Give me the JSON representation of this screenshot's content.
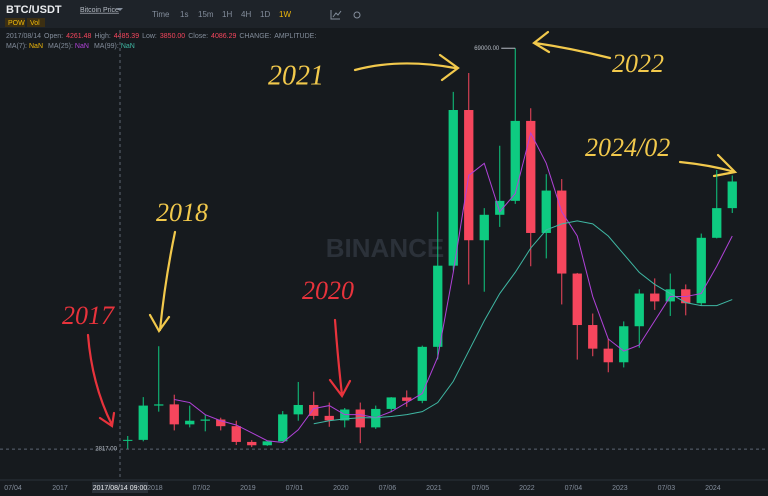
{
  "ui": {
    "symbol": "BTC/USDT",
    "symbol_name": "Bitcoin Price",
    "tags": [
      "POW",
      "Vol"
    ],
    "intervals": [
      "Time",
      "1s",
      "15m",
      "1H",
      "4H",
      "1D",
      "1W"
    ],
    "info": {
      "date": "2017/08/14",
      "open_label": "Open:",
      "open": "4261.48",
      "high_label": "High:",
      "high": "4485.39",
      "low_label": "Low:",
      "low": "3850.00",
      "close_label": "Close:",
      "close": "4086.29",
      "change_label": "CHANGE:",
      "amplitude_label": "AMPLITUDE:"
    },
    "ma_line": [
      "MA(7):",
      "NaN",
      "MA(25):",
      "NaN",
      "MA(99):",
      "NaN"
    ],
    "watermark": "BINANCE",
    "pre_x_labels": [
      "07/04",
      "2017"
    ],
    "crosshair_label": "2017/08/14 09:00",
    "annotations": [
      {
        "text": "2017",
        "color": "#e8333c"
      },
      {
        "text": "2018",
        "color": "#f2c94c"
      },
      {
        "text": "2020",
        "color": "#e8333c"
      },
      {
        "text": "2021",
        "color": "#f2c94c"
      },
      {
        "text": "2022",
        "color": "#f2c94c"
      },
      {
        "text": "2024/02",
        "color": "#f2c94c"
      }
    ]
  },
  "chart_data": {
    "type": "candlestick",
    "up_color": "#0ecb81",
    "down_color": "#f6465d",
    "categories": [
      null,
      null,
      null,
      "2018",
      null,
      null,
      "07/02",
      null,
      null,
      "2019",
      null,
      null,
      "07/01",
      null,
      null,
      "2020",
      null,
      null,
      "07/06",
      null,
      null,
      "2021",
      null,
      null,
      "07/05",
      null,
      null,
      "2022",
      null,
      null,
      "07/04",
      null,
      null,
      "2023",
      null,
      null,
      "07/03",
      null,
      null,
      "2024"
    ],
    "open": [
      4261,
      4340,
      10000,
      10200,
      6900,
      7500,
      7700,
      6600,
      4000,
      3450,
      4100,
      8550,
      10100,
      8300,
      7550,
      9350,
      6400,
      9450,
      11350,
      10780,
      19700,
      33100,
      58800,
      37300,
      41500,
      43800,
      57000,
      38500,
      45500,
      31800,
      23300,
      19400,
      17150,
      23100,
      28500,
      27200,
      29200,
      26900,
      37700,
      42600
    ],
    "high": [
      4980,
      11400,
      19800,
      11800,
      9990,
      8500,
      8000,
      7500,
      4300,
      4200,
      9100,
      13900,
      12300,
      10500,
      9600,
      10500,
      10000,
      11400,
      12500,
      19900,
      42000,
      61800,
      64900,
      42600,
      52900,
      69000,
      59100,
      48200,
      47400,
      31900,
      25200,
      21100,
      23900,
      29200,
      31000,
      31800,
      30000,
      38400,
      48900,
      48000
    ],
    "low": [
      2817,
      4100,
      9000,
      5900,
      6400,
      5750,
      5900,
      3500,
      3150,
      3350,
      4050,
      7500,
      7700,
      6500,
      6400,
      3800,
      6150,
      8900,
      9800,
      10400,
      17600,
      32300,
      30000,
      28800,
      39500,
      43300,
      33000,
      34300,
      26700,
      17600,
      18150,
      15500,
      16300,
      19550,
      25800,
      24800,
      24900,
      26500,
      37600,
      41800
    ],
    "close": [
      4340,
      10000,
      10200,
      6900,
      7500,
      7700,
      6600,
      4000,
      3450,
      4100,
      8550,
      10100,
      8300,
      7550,
      9350,
      6400,
      9450,
      11350,
      10780,
      19700,
      33100,
      58800,
      37300,
      41500,
      43800,
      57000,
      38500,
      45500,
      31800,
      23300,
      19400,
      17150,
      23100,
      28500,
      27200,
      29200,
      26900,
      37700,
      42600,
      47000
    ],
    "series": [
      {
        "name": "MA(25)",
        "color": "#b042d8",
        "values": [
          null,
          null,
          null,
          11000,
          10500,
          8500,
          7500,
          6800,
          5500,
          4200,
          3900,
          6000,
          9500,
          10000,
          8500,
          8500,
          8000,
          9000,
          10500,
          12000,
          18000,
          32000,
          48000,
          50000,
          42000,
          45000,
          55000,
          50000,
          42000,
          38000,
          28000,
          21000,
          19000,
          20000,
          24000,
          28000,
          28000,
          28500,
          33000,
          38000
        ]
      },
      {
        "name": "MA(99)",
        "color": "#3fb7a3",
        "values": [
          null,
          null,
          null,
          null,
          null,
          null,
          null,
          null,
          null,
          null,
          null,
          null,
          7000,
          7500,
          7800,
          8000,
          8000,
          8200,
          8500,
          9000,
          10500,
          14000,
          19000,
          24000,
          28500,
          32000,
          36000,
          39000,
          40000,
          40500,
          40000,
          38000,
          35000,
          32000,
          30000,
          28500,
          27000,
          26500,
          26500,
          27500
        ]
      }
    ],
    "high_marker": {
      "value": 69000,
      "label": "69000.00"
    },
    "low_marker": {
      "value": 2817,
      "label": "2817.00"
    },
    "ylim": [
      -800,
      73000
    ]
  }
}
